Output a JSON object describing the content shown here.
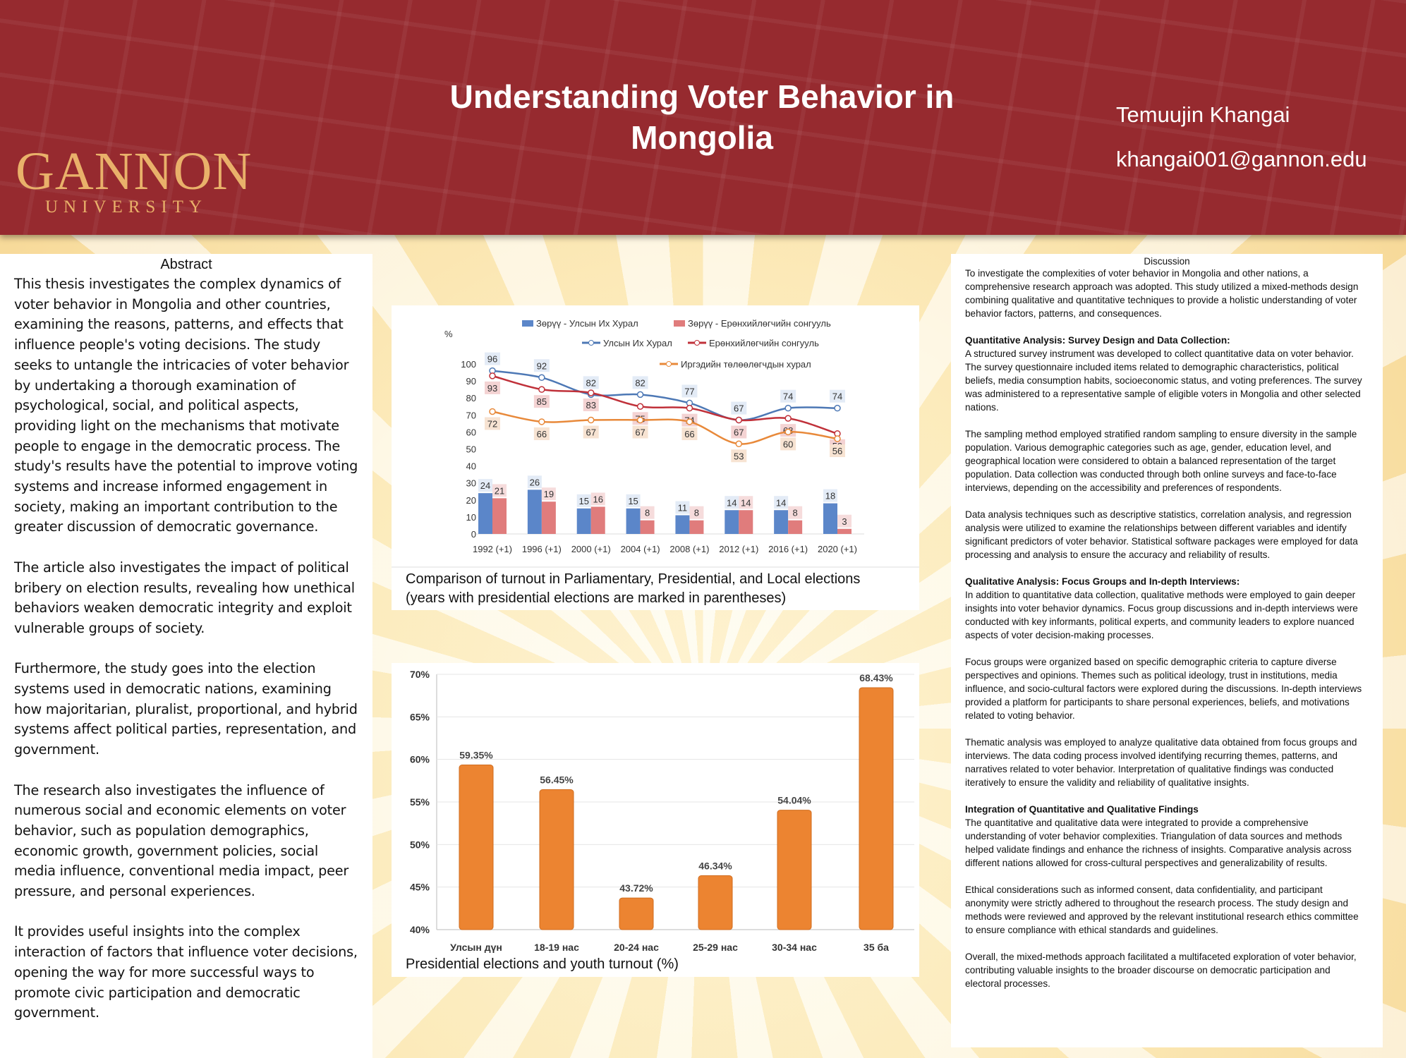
{
  "header": {
    "logo": "GANNON",
    "logo_sub": "UNIVERSITY",
    "title": "Understanding Voter Behavior in Mongolia",
    "author": "Temuujin Khangai",
    "email": "khangai001@gannon.edu"
  },
  "abstract": {
    "heading": "Abstract",
    "paragraphs": [
      "This thesis investigates the complex dynamics of voter behavior in Mongolia and other countries, examining the reasons, patterns, and effects that influence people's voting decisions.   The study seeks to untangle the intricacies of voter behavior by undertaking a thorough examination of psychological, social, and political aspects, providing light on the mechanisms that motivate people to engage in the democratic process.   The study's results have the potential to improve voting systems and increase informed engagement in society, making an important contribution to the greater discussion of democratic governance.",
      "The article also investigates the impact of political bribery on election results, revealing how unethical behaviors weaken democratic integrity and exploit vulnerable groups of society.",
      "Furthermore, the study goes into the election systems used in democratic nations, examining how majoritarian, pluralist, proportional, and hybrid systems affect political parties, representation, and government.",
      "The research also investigates the influence of numerous social and economic elements on voter behavior, such as population demographics, economic growth, government policies, social media influence, conventional media impact, peer pressure, and personal experiences.",
      "It provides useful insights into the complex interaction of factors that influence voter decisions, opening the way for more successful ways to promote civic participation and democratic government."
    ]
  },
  "discussion": {
    "heading": "Discussion",
    "blocks": [
      {
        "title": "",
        "text": "To investigate the complexities of voter behavior in Mongolia and other nations, a comprehensive research approach was adopted. This study utilized a mixed-methods design combining qualitative and quantitative techniques to provide a holistic understanding of voter behavior factors, patterns, and consequences."
      },
      {
        "title": "Quantitative Analysis: Survey Design and Data Collection:",
        "text": "A structured survey instrument was developed to collect quantitative data on voter behavior. The survey questionnaire included items related to demographic characteristics, political beliefs, media consumption habits, socioeconomic status, and voting preferences. The survey was administered to a representative sample of eligible voters in Mongolia and other selected nations."
      },
      {
        "title": "",
        "text": "The sampling method employed stratified random sampling to ensure diversity in the sample population. Various demographic categories such as age, gender, education level, and geographical location were considered to obtain a balanced representation of the target population. Data collection was conducted through both online surveys and face-to-face interviews, depending on the accessibility and preferences of respondents."
      },
      {
        "title": "",
        "text": "Data analysis techniques such as descriptive statistics, correlation analysis, and regression analysis were utilized to examine the relationships between different variables and identify significant predictors of voter behavior. Statistical software packages were employed for data processing and analysis to ensure the accuracy and reliability of results."
      },
      {
        "title": "Qualitative Analysis: Focus Groups and In-depth Interviews:",
        "text": "In addition to quantitative data collection, qualitative methods were employed to gain deeper insights into voter behavior dynamics. Focus group discussions and in-depth interviews were conducted with key informants, political experts, and community leaders to explore nuanced aspects of voter decision-making processes."
      },
      {
        "title": "",
        "text": "Focus groups were organized based on specific demographic criteria to capture diverse perspectives and opinions. Themes such as political ideology, trust in institutions, media influence, and socio-cultural factors were explored during the discussions. In-depth interviews provided a platform for participants to share personal experiences, beliefs, and motivations related to voting behavior."
      },
      {
        "title": "",
        "text": "Thematic analysis was employed to analyze qualitative data obtained from focus groups and interviews. The data coding process involved identifying recurring themes, patterns, and narratives related to voter behavior. Interpretation of qualitative findings was conducted iteratively to ensure the validity and reliability of qualitative insights."
      },
      {
        "title": "Integration of Quantitative and Qualitative Findings",
        "text": "The quantitative and qualitative data were integrated to provide a comprehensive understanding of voter behavior complexities. Triangulation of data sources and methods helped validate findings and enhance the richness of insights. Comparative analysis across different nations allowed for cross-cultural perspectives and generalizability of results."
      },
      {
        "title": "",
        "text": "Ethical considerations such as informed consent, data confidentiality, and participant anonymity were strictly adhered to throughout the research process. The study design and methods were reviewed and approved by the relevant institutional research ethics committee to ensure compliance with ethical standards and guidelines."
      },
      {
        "title": "",
        "text": "Overall, the mixed-methods approach facilitated a multifaceted exploration of voter behavior, contributing valuable insights to the broader discourse on democratic participation and electoral processes."
      }
    ]
  },
  "chart_data": [
    {
      "type": "bar+line",
      "ylabel": "%",
      "ylim": [
        0,
        100
      ],
      "yticks": [
        0,
        10,
        20,
        30,
        40,
        50,
        60,
        70,
        80,
        90,
        100
      ],
      "categories": [
        "1992 (+1)",
        "1996 (+1)",
        "2000 (+1)",
        "2004 (+1)",
        "2008 (+1)",
        "2012 (+1)",
        "2016 (+1)",
        "2020 (+1)"
      ],
      "caption": [
        "Comparison of turnout in Parliamentary, Presidential, and Local elections",
        "(years with presidential elections are marked in parentheses)"
      ],
      "bars": [
        {
          "name": "Зөрүү - Улсын Их Хурал",
          "color": "#5b86c9",
          "label_bg": "#e3ebf6",
          "values": [
            24,
            26,
            15,
            15,
            11,
            14,
            14,
            18
          ]
        },
        {
          "name": "Зөрүү - Ерөнхийлөгчийн сонгууль",
          "color": "#e07c7c",
          "label_bg": "#f6dcdc",
          "values": [
            21,
            19,
            16,
            8,
            8,
            14,
            8,
            3
          ]
        }
      ],
      "lines": [
        {
          "name": "Улсын Их Хурал",
          "color": "#4d78b5",
          "label_bg": "#e3ebf6",
          "values": [
            96,
            92,
            82,
            82,
            77,
            67,
            74,
            74
          ]
        },
        {
          "name": "Ерөнхийлөгчийн сонгууль",
          "color": "#c0313a",
          "label_bg": "#f4d3d3",
          "values": [
            93,
            85,
            83,
            75,
            74,
            67,
            68,
            59
          ]
        },
        {
          "name": "Иргэдийн төлөөлөгчдын хурал",
          "color": "#e8893a",
          "label_bg": "#f7e3d2",
          "values": [
            72,
            66,
            67,
            67,
            66,
            53,
            60,
            56
          ]
        }
      ]
    },
    {
      "type": "bar",
      "ylim": [
        40,
        70
      ],
      "yticks": [
        "40%",
        "45%",
        "50%",
        "55%",
        "60%",
        "65%",
        "70%"
      ],
      "color": "#ec8431",
      "categories": [
        "Улсын дүн",
        "18-19 нас",
        "20-24 нас",
        "25-29 нас",
        "30-34 нас",
        "35 ба"
      ],
      "values": [
        59.35,
        56.45,
        43.72,
        46.34,
        54.04,
        68.43
      ],
      "labels": [
        "59.35%",
        "56.45%",
        "43.72%",
        "46.34%",
        "54.04%",
        "68.43%"
      ],
      "caption": "Presidential elections and youth turnout (%)"
    }
  ]
}
